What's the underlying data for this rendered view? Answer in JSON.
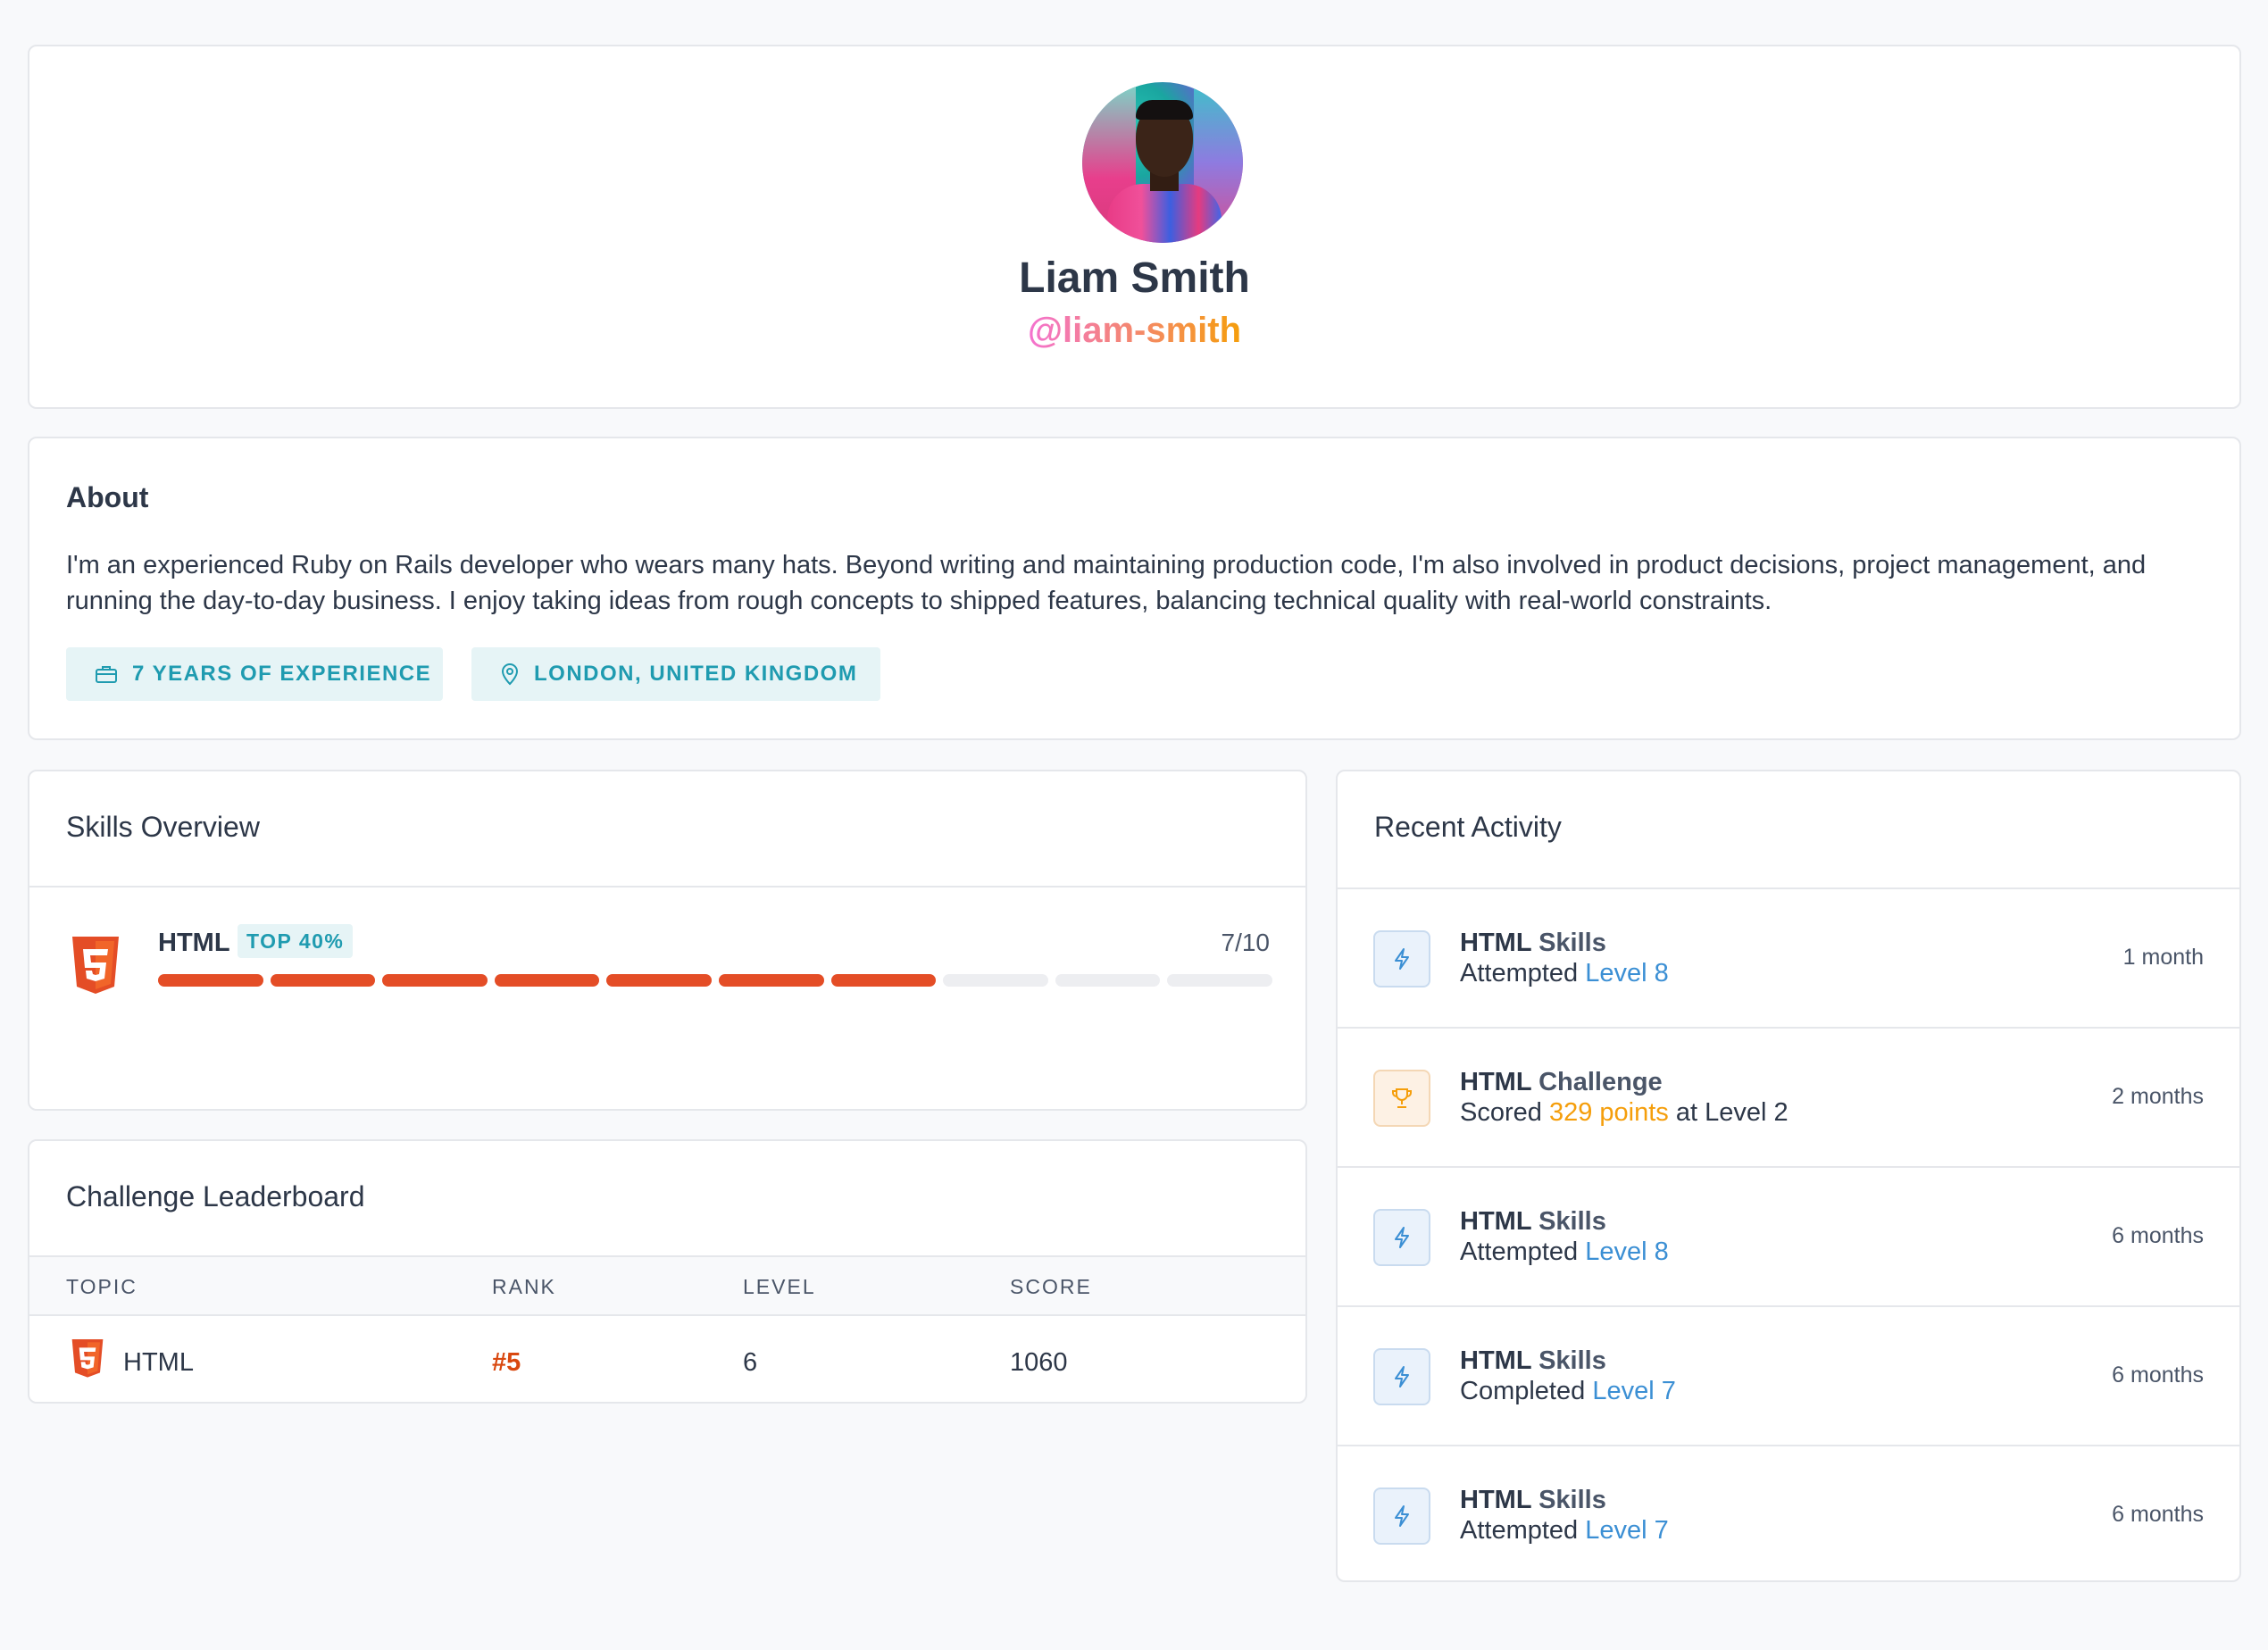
{
  "profile": {
    "name": "Liam Smith",
    "handle": "@liam-smith"
  },
  "about": {
    "title": "About",
    "body": "I'm an experienced Ruby on Rails developer who wears many hats. Beyond writing and maintaining production code, I'm also involved in product decisions, project management, and running the day-to-day business. I enjoy taking ideas from rough concepts to shipped features, balancing technical quality with real-world constraints.",
    "tags": [
      {
        "label": "7 YEARS OF EXPERIENCE",
        "icon": "briefcase-icon"
      },
      {
        "label": "LONDON, UNITED KINGDOM",
        "icon": "map-pin-icon"
      }
    ]
  },
  "skills": {
    "title": "Skills Overview",
    "items": [
      {
        "name": "HTML",
        "badge": "TOP 40%",
        "score": "7/10",
        "level": 7,
        "max": 10,
        "icon": "html5-icon"
      }
    ]
  },
  "leaderboard": {
    "title": "Challenge Leaderboard",
    "columns": [
      "TOPIC",
      "RANK",
      "LEVEL",
      "SCORE"
    ],
    "rows": [
      {
        "topic": "HTML",
        "rank": "#5",
        "level": "6",
        "score": "1060"
      }
    ]
  },
  "activity": {
    "title": "Recent Activity",
    "items": [
      {
        "icon": "bolt-icon",
        "topic": "HTML",
        "kind": "Skills",
        "verb": "Attempted",
        "highlight": "Level 8",
        "suffix": "",
        "time": "1 month"
      },
      {
        "icon": "trophy-icon",
        "topic": "HTML",
        "kind": "Challenge",
        "verb": "Scored",
        "highlight": "329 points",
        "suffix": "at Level 2",
        "time": "2 months"
      },
      {
        "icon": "bolt-icon",
        "topic": "HTML",
        "kind": "Skills",
        "verb": "Attempted",
        "highlight": "Level 8",
        "suffix": "",
        "time": "6 months"
      },
      {
        "icon": "bolt-icon",
        "topic": "HTML",
        "kind": "Skills",
        "verb": "Completed",
        "highlight": "Level 7",
        "suffix": "",
        "time": "6 months"
      },
      {
        "icon": "bolt-icon",
        "topic": "HTML",
        "kind": "Skills",
        "verb": "Attempted",
        "highlight": "Level 7",
        "suffix": "",
        "time": "6 months"
      }
    ]
  },
  "colors": {
    "accent": "#1f9bb0",
    "html5": "#e44d26",
    "link": "#3b8fd4",
    "points": "#f59e0b"
  }
}
